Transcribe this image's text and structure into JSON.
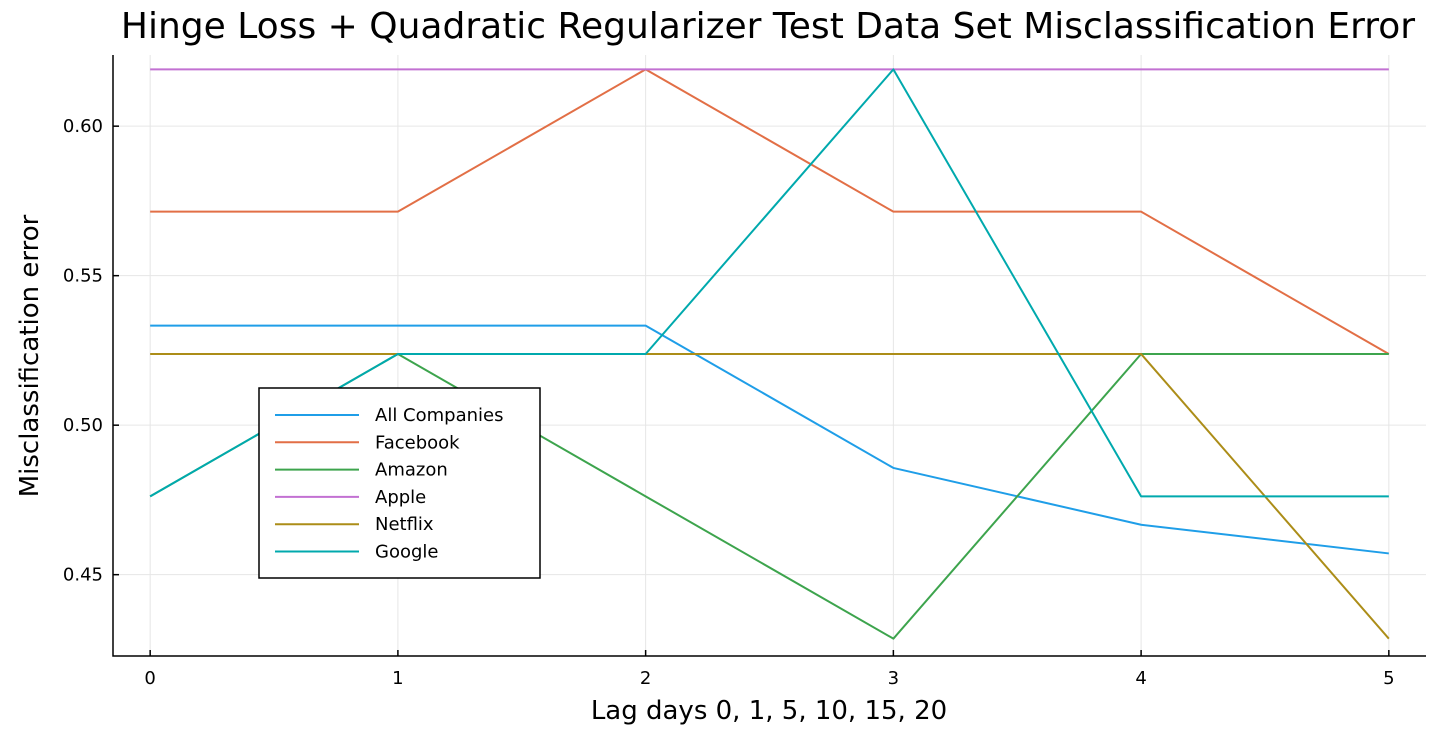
{
  "chart_data": {
    "type": "line",
    "title": "Hinge Loss + Quadratic Regularizer Test Data Set Misclassification Error",
    "xlabel": "Lag days 0, 1, 5, 10, 15, 20",
    "ylabel": "Misclassification error",
    "x": [
      0,
      1,
      2,
      3,
      4,
      5
    ],
    "x_ticks": [
      "0",
      "1",
      "2",
      "3",
      "4",
      "5"
    ],
    "y_ticks": [
      "0.45",
      "0.50",
      "0.55",
      "0.60"
    ],
    "xlim": [
      -0.15,
      5.15
    ],
    "ylim": [
      0.4228,
      0.6238
    ],
    "grid": true,
    "legend_position": "left",
    "series": [
      {
        "name": "All Companies",
        "color": "#1f9ee8",
        "values": [
          0.5333,
          0.5333,
          0.5333,
          0.4857,
          0.4667,
          0.4571
        ]
      },
      {
        "name": "Facebook",
        "color": "#e26f46",
        "values": [
          0.5714,
          0.5714,
          0.619,
          0.5714,
          0.5714,
          0.5238
        ]
      },
      {
        "name": "Amazon",
        "color": "#3da44d",
        "values": [
          0.4762,
          0.5238,
          0.4762,
          0.4286,
          0.5238,
          0.5238
        ]
      },
      {
        "name": "Apple",
        "color": "#c271d2",
        "values": [
          0.619,
          0.619,
          0.619,
          0.619,
          0.619,
          0.619
        ]
      },
      {
        "name": "Netflix",
        "color": "#ac8d18",
        "values": [
          0.5238,
          0.5238,
          0.5238,
          0.5238,
          0.5238,
          0.4286
        ]
      },
      {
        "name": "Google",
        "color": "#00a9ad",
        "values": [
          0.4762,
          0.5238,
          0.5238,
          0.619,
          0.4762,
          0.4762
        ]
      }
    ]
  }
}
